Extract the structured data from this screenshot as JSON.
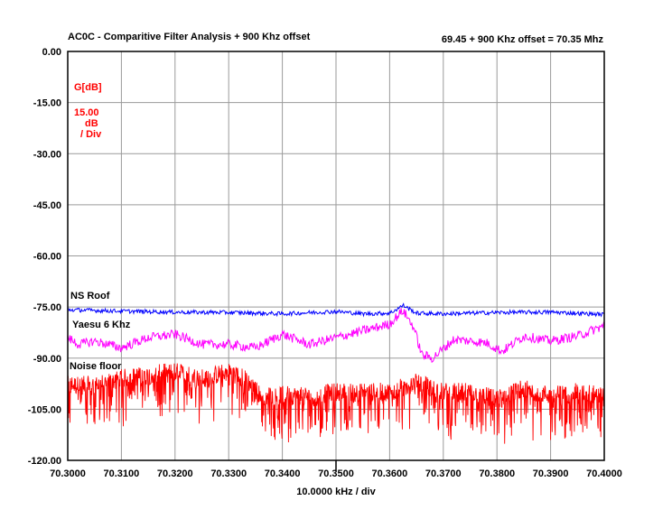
{
  "header": {
    "title": "AC0C - Comparitive Filter Analysis + 900 Khz offset",
    "info": "69.45 + 900 Khz offset = 70.35 Mhz"
  },
  "scale_box": {
    "unit": "G[dB]",
    "per_div_value": "15.00",
    "per_div_unit": "dB",
    "per_div_suffix": "/ Div"
  },
  "x_axis_label": "10.0000 kHz / div",
  "chart_data": {
    "type": "line",
    "title": "AC0C - Comparitive Filter Analysis + 900 Khz offset",
    "xlabel": "10.0000 kHz / div",
    "ylabel": "G[dB]",
    "xlim": [
      70.3,
      70.4
    ],
    "ylim": [
      -120,
      0
    ],
    "grid": true,
    "x_ticks": [
      "70.3000",
      "70.3100",
      "70.3200",
      "70.3300",
      "70.3400",
      "70.3500",
      "70.3600",
      "70.3700",
      "70.3800",
      "70.3900",
      "70.4000"
    ],
    "y_ticks": [
      "0.00",
      "-15.00",
      "-30.00",
      "-45.00",
      "-60.00",
      "-75.00",
      "-90.00",
      "-105.00",
      "-120.00"
    ],
    "series": [
      {
        "name": "NS Roof",
        "color": "#0000ff",
        "noise": 0.6,
        "x": [
          70.3,
          70.31,
          70.32,
          70.33,
          70.34,
          70.35,
          70.355,
          70.36,
          70.3615,
          70.3625,
          70.365,
          70.37,
          70.38,
          70.39,
          70.4
        ],
        "y": [
          -75.8,
          -76.2,
          -76.5,
          -76.6,
          -77.0,
          -76.3,
          -77.0,
          -76.8,
          -75.5,
          -74.5,
          -76.8,
          -77.0,
          -76.6,
          -76.5,
          -77.2
        ]
      },
      {
        "name": "Yaesu 6 Khz",
        "color": "#ff00ff",
        "noise": 1.4,
        "x": [
          70.3,
          70.302,
          70.305,
          70.31,
          70.315,
          70.32,
          70.325,
          70.33,
          70.335,
          70.34,
          70.345,
          70.35,
          70.355,
          70.36,
          70.3615,
          70.3625,
          70.3645,
          70.366,
          70.368,
          70.372,
          70.378,
          70.381,
          70.385,
          70.39,
          70.395,
          70.4
        ],
        "y": [
          -84,
          -86,
          -85,
          -87,
          -84,
          -83,
          -86,
          -86,
          -87,
          -83,
          -86,
          -84,
          -82,
          -80,
          -77.5,
          -76,
          -81,
          -89,
          -90,
          -84.5,
          -85.5,
          -88,
          -83.5,
          -85,
          -83.5,
          -80.5
        ]
      },
      {
        "name": "Noise floor",
        "color": "#ff0000",
        "noise": 2.8,
        "spike_depth": 12,
        "x": [
          70.3,
          70.305,
          70.31,
          70.315,
          70.32,
          70.325,
          70.33,
          70.333,
          70.336,
          70.34,
          70.345,
          70.35,
          70.355,
          70.36,
          70.365,
          70.37,
          70.375,
          70.38,
          70.385,
          70.39,
          70.395,
          70.4
        ],
        "y": [
          -98,
          -98,
          -96,
          -95,
          -94,
          -96,
          -94,
          -96,
          -101,
          -101,
          -101,
          -100,
          -100,
          -100,
          -97,
          -100,
          -100,
          -102,
          -99,
          -101,
          -100,
          -101
        ]
      }
    ]
  }
}
